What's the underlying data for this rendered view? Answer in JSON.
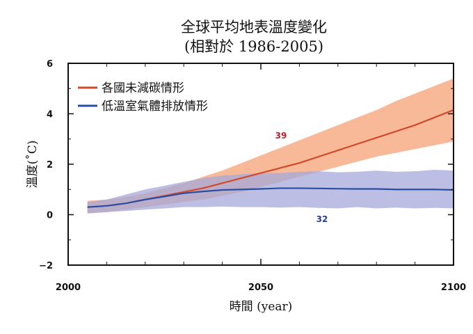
{
  "chart_data": {
    "type": "line",
    "title": "全球平均地表溫度變化",
    "subtitle": "(相對於 1986-2005)",
    "xlabel": "時間 (year)",
    "ylabel": "溫度(˚C)",
    "xlim": [
      2000,
      2100
    ],
    "ylim": [
      -2,
      6
    ],
    "x_ticks": [
      "2000",
      "2050",
      "2100"
    ],
    "y_ticks": [
      "6",
      "4",
      "2",
      "0",
      "−2"
    ],
    "y_tick_values": [
      6,
      4,
      2,
      0,
      -2
    ],
    "x_tick_values": [
      2000,
      2050,
      2100
    ],
    "grid": false,
    "legend_position": "top-left",
    "x": [
      2005,
      2010,
      2015,
      2020,
      2025,
      2030,
      2035,
      2040,
      2045,
      2050,
      2055,
      2060,
      2065,
      2070,
      2075,
      2080,
      2085,
      2090,
      2095,
      2100
    ],
    "series": [
      {
        "name": "各國未減碳情形",
        "color": "#d2492a",
        "band_color": "#f6ad86",
        "values": [
          0.3,
          0.35,
          0.45,
          0.6,
          0.75,
          0.9,
          1.05,
          1.25,
          1.45,
          1.65,
          1.85,
          2.05,
          2.3,
          2.55,
          2.8,
          3.05,
          3.3,
          3.55,
          3.85,
          4.15
        ],
        "band_lower": [
          0.05,
          0.1,
          0.2,
          0.3,
          0.4,
          0.5,
          0.6,
          0.75,
          0.9,
          1.1,
          1.3,
          1.5,
          1.7,
          1.9,
          2.1,
          2.3,
          2.45,
          2.6,
          2.75,
          2.9
        ],
        "band_upper": [
          0.55,
          0.6,
          0.7,
          0.85,
          1.05,
          1.25,
          1.5,
          1.75,
          2.05,
          2.35,
          2.65,
          2.95,
          3.25,
          3.55,
          3.85,
          4.15,
          4.5,
          4.8,
          5.1,
          5.4
        ],
        "annotation": "39"
      },
      {
        "name": "低溫室氣體排放情形",
        "color": "#2a4ea3",
        "band_color": "#a6a9d9",
        "values": [
          0.3,
          0.35,
          0.45,
          0.6,
          0.72,
          0.85,
          0.92,
          0.98,
          1.0,
          1.02,
          1.05,
          1.05,
          1.04,
          1.03,
          1.02,
          1.02,
          1.0,
          1.0,
          1.0,
          0.98
        ],
        "band_lower": [
          0.05,
          0.1,
          0.15,
          0.2,
          0.25,
          0.3,
          0.3,
          0.32,
          0.3,
          0.3,
          0.28,
          0.3,
          0.27,
          0.25,
          0.3,
          0.25,
          0.28,
          0.25,
          0.27,
          0.25
        ],
        "band_upper": [
          0.5,
          0.6,
          0.8,
          1.0,
          1.15,
          1.3,
          1.45,
          1.55,
          1.6,
          1.65,
          1.65,
          1.7,
          1.72,
          1.68,
          1.7,
          1.75,
          1.7,
          1.72,
          1.78,
          1.75
        ],
        "annotation": "32"
      }
    ]
  }
}
